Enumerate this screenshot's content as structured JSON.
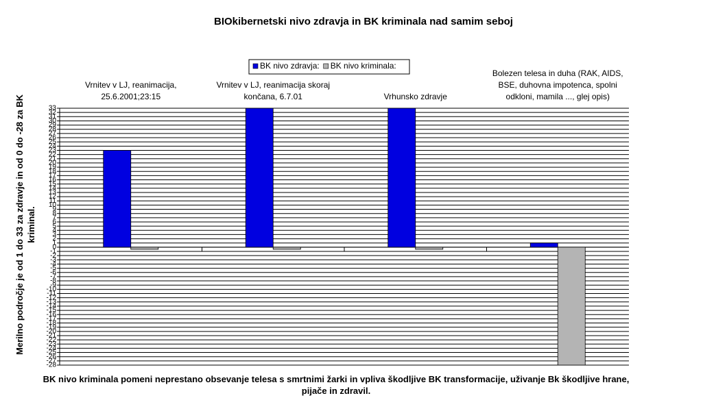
{
  "chart_data": {
    "type": "bar",
    "title": "BIOkibernetski nivo zdravja in BK kriminala nad samim seboj",
    "y_label": "Merilno področje je od 1 do 33 za zdravje in od 0 do -28 za BK kriminal.",
    "x_label": "BK nivo kriminala pomeni neprestano obsevanje telesa s smrtnimi žarki in vpliva škodljive BK transformacije, uživanje Bk škodljive hrane, pijače in zdravil.",
    "categories": [
      "Vrnitev v LJ, reanimacija, 25.6.2001;23:15",
      "Vrnitev v LJ, reanimacija skoraj končana, 6.7.01",
      "Vrhunsko zdravje",
      "Bolezen telesa in duha (RAK, AIDS, BSE, duhovna impotenca, spolni odkloni, mamila ..., glej opis)"
    ],
    "series": [
      {
        "name": "BK nivo zdravja:",
        "color": "#0000e0",
        "values": [
          23,
          33,
          33,
          1
        ]
      },
      {
        "name": "BK nivo kriminala:",
        "color": "#b4b4b4",
        "values": [
          -0.5,
          -0.5,
          -0.5,
          -28
        ]
      }
    ],
    "ylim": [
      -28,
      33
    ],
    "yticks": [
      -28,
      -27,
      -26,
      -25,
      -24,
      -23,
      -22,
      -21,
      -20,
      -19,
      -18,
      -17,
      -16,
      -15,
      -14,
      -13,
      -12,
      -11,
      -10,
      -9,
      -8,
      -7,
      -6,
      -5,
      -4,
      -3,
      -2,
      -1,
      0,
      1,
      2,
      3,
      4,
      5,
      6,
      7,
      8,
      9,
      10,
      11,
      12,
      13,
      14,
      15,
      16,
      17,
      18,
      19,
      20,
      21,
      22,
      23,
      24,
      25,
      26,
      27,
      28,
      29,
      30,
      31,
      32,
      33
    ],
    "grid": true
  }
}
